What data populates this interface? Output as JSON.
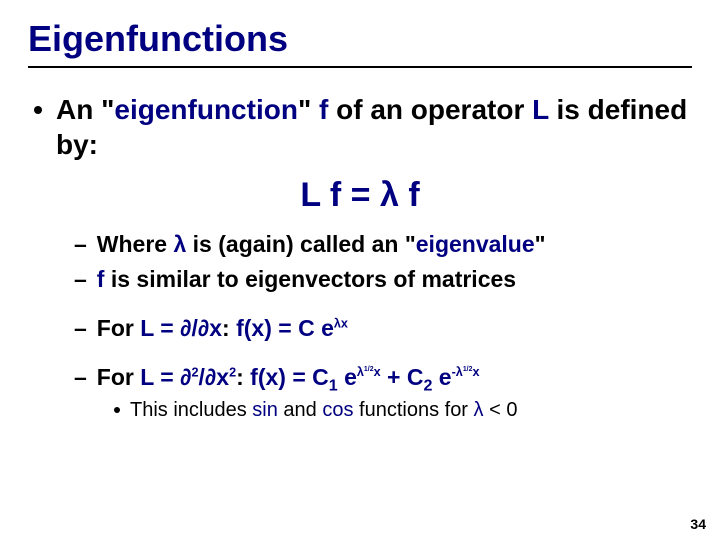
{
  "colors": {
    "title": "#000080",
    "accent": "#000080",
    "body": "#000000",
    "background": "#ffffff",
    "rule": "#000000"
  },
  "fonts": {
    "body_family": "Comic Sans MS",
    "pagenum_family": "Arial",
    "title_size_pt": 36,
    "l1_size_pt": 28,
    "equation_size_pt": 34,
    "l2_size_pt": 23,
    "l3_size_pt": 20,
    "pagenum_size_pt": 14
  },
  "title": "Eigenfunctions",
  "l1": {
    "pre": "An \"",
    "highlight1": "eigenfunction",
    "mid1": "\" ",
    "f": "f",
    "mid2": " of an operator ",
    "L": "L",
    "post": " is defined by:"
  },
  "equation": "L f = λ f",
  "l2a": {
    "pre": "Where ",
    "lam": "λ",
    "mid": " is (again) called an \"",
    "eig": "eigenvalue",
    "post": "\""
  },
  "l2b": {
    "f": "f",
    "post": " is similar to eigenvectors of matrices"
  },
  "l2c": {
    "pre": "For ",
    "lhs_L": "L",
    "lhs_eq": " = ",
    "lhs_op": "∂/∂x",
    "colon": ":  ",
    "fx": "f(x) = C e",
    "exp": "λx"
  },
  "l2d": {
    "pre": "For ",
    "lhs_L": "L",
    "lhs_eq": " = ",
    "lhs_op_a": "∂",
    "lhs_op_sup1": "2",
    "lhs_op_b": "/∂x",
    "lhs_op_sup2": "2",
    "colon": ":  ",
    "fx_a": "f(x) = C",
    "sub1": "1",
    "fx_b": " e",
    "exp1_a": "λ",
    "exp1_half": "1/2",
    "exp1_b": "x",
    "plus": " + C",
    "sub2": "2",
    "fx_c": " e",
    "exp2_a": "-λ",
    "exp2_half": "1/2",
    "exp2_b": "x"
  },
  "l3": {
    "pre": "This includes ",
    "sin": "sin",
    "and": " and ",
    "cos": "cos",
    "mid": " functions for ",
    "lam": "λ",
    "post": " < 0"
  },
  "page_number": "34"
}
